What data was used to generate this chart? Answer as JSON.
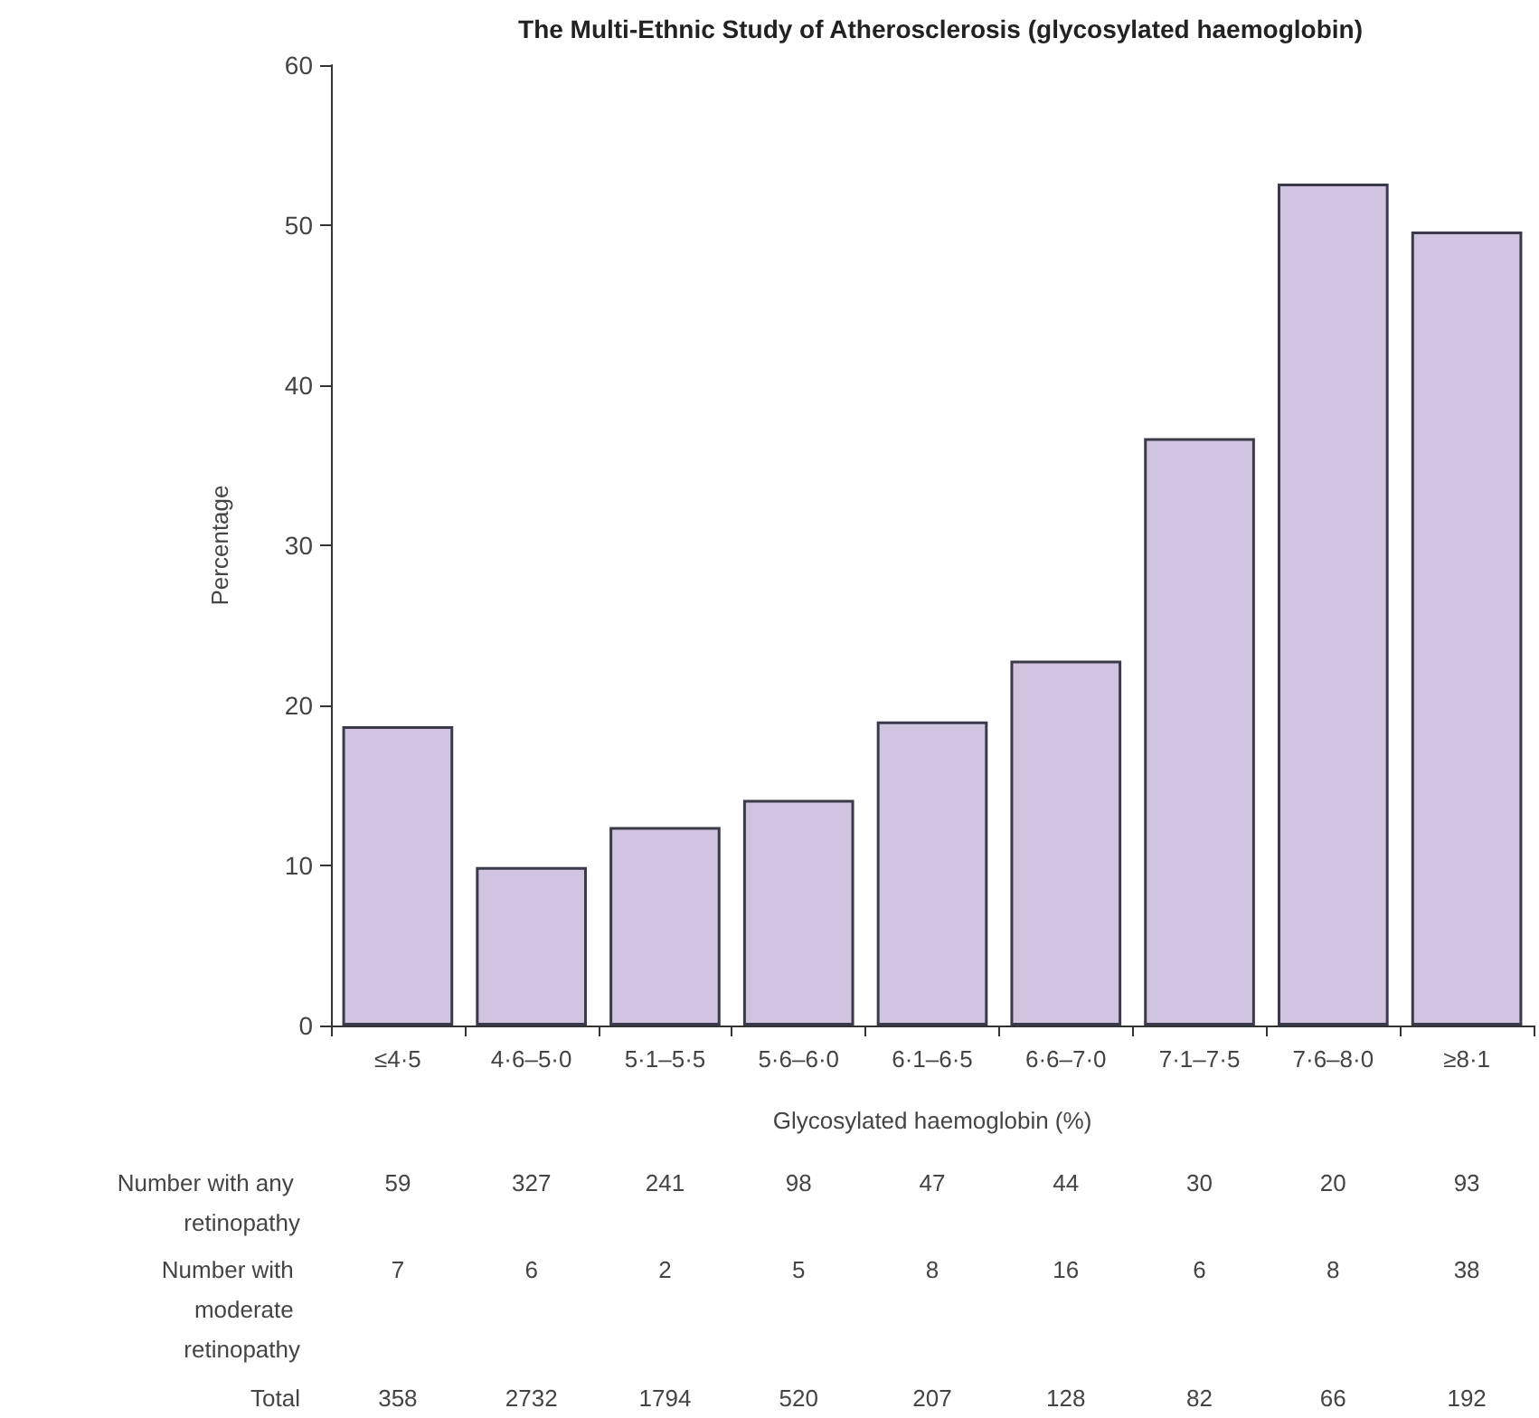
{
  "chart_data": {
    "type": "bar",
    "title": "The Multi-Ethnic Study of Atherosclerosis (glycosylated haemoglobin)",
    "xlabel": "Glycosylated haemoglobin (%)",
    "ylabel": "Percentage",
    "categories": [
      "≤4·5",
      "4·6–5·0",
      "5·1–5·5",
      "5·6–6·0",
      "6·1–6·5",
      "6·6–7·0",
      "7·1–7·5",
      "7·6–8·0",
      "≥8·1"
    ],
    "values": [
      18.7,
      9.9,
      12.4,
      14.1,
      19.0,
      22.8,
      36.7,
      52.6,
      49.6
    ],
    "color": "#d1c4e1",
    "ylim": [
      0,
      60
    ],
    "yticks": [
      0,
      10,
      20,
      30,
      40,
      50,
      60
    ],
    "grid": false,
    "annotations": [
      "Number with any retinopathy",
      "59",
      "327",
      "241",
      "98",
      "47",
      "44",
      "30",
      "20",
      "93",
      "Number with moderate retinopathy",
      "7",
      "6",
      "2",
      "5",
      "8",
      "16",
      "6",
      "8",
      "38",
      "Total",
      "358",
      "2732",
      "1794",
      "520",
      "207",
      "128",
      "82",
      "66",
      "192"
    ]
  }
}
